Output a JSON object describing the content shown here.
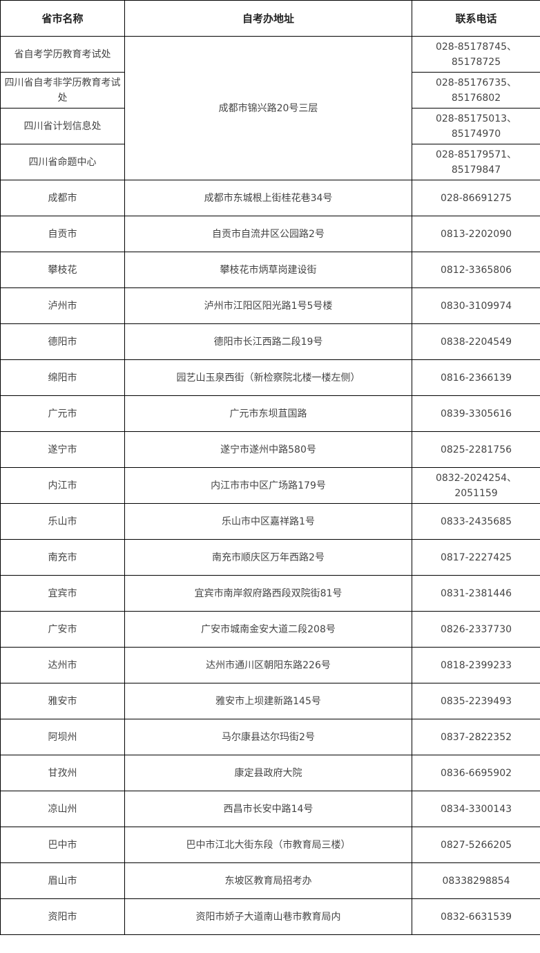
{
  "table": {
    "headers": [
      "省市名称",
      "自考办地址",
      "联系电话"
    ],
    "provincial": {
      "address": "成都市锦兴路20号三层",
      "rows": [
        {
          "name": "省自考学历教育考试处",
          "phone": "028-85178745、85178725"
        },
        {
          "name": "四川省自考非学历教育考试处",
          "phone": "028-85176735、85176802"
        },
        {
          "name": "四川省计划信息处",
          "phone": "028-85175013、85174970"
        },
        {
          "name": "四川省命题中心",
          "phone": "028-85179571、85179847"
        }
      ]
    },
    "rows": [
      {
        "name": "成都市",
        "address": "成都市东城根上街桂花巷34号",
        "phone": "028-86691275"
      },
      {
        "name": "自贡市",
        "address": "自贡市自流井区公园路2号",
        "phone": "0813-2202090"
      },
      {
        "name": "攀枝花",
        "address": "攀枝花市炳草岗建设街",
        "phone": "0812-3365806"
      },
      {
        "name": "泸州市",
        "address": "泸州市江阳区阳光路1号5号楼",
        "phone": "0830-3109974"
      },
      {
        "name": "德阳市",
        "address": "德阳市长江西路二段19号",
        "phone": "0838-2204549"
      },
      {
        "name": "绵阳市",
        "address": "园艺山玉泉西街（新检察院北楼一楼左侧）",
        "phone": "0816-2366139"
      },
      {
        "name": "广元市",
        "address": "广元市东坝苴国路",
        "phone": "0839-3305616"
      },
      {
        "name": "遂宁市",
        "address": "遂宁市遂州中路580号",
        "phone": "0825-2281756"
      },
      {
        "name": "内江市",
        "address": "内江市市中区广场路179号",
        "phone": "0832-2024254、2051159"
      },
      {
        "name": "乐山市",
        "address": "乐山市中区嘉祥路1号",
        "phone": "0833-2435685"
      },
      {
        "name": "南充市",
        "address": "南充市顺庆区万年西路2号",
        "phone": "0817-2227425"
      },
      {
        "name": "宜宾市",
        "address": "宜宾市南岸叙府路西段双院街81号",
        "phone": "0831-2381446"
      },
      {
        "name": "广安市",
        "address": "广安市城南金安大道二段208号",
        "phone": "0826-2337730"
      },
      {
        "name": "达州市",
        "address": "达州市通川区朝阳东路226号",
        "phone": "0818-2399233"
      },
      {
        "name": "雅安市",
        "address": "雅安市上坝建新路145号",
        "phone": "0835-2239493"
      },
      {
        "name": "阿坝州",
        "address": "马尔康县达尔玛街2号",
        "phone": "0837-2822352"
      },
      {
        "name": "甘孜州",
        "address": "康定县政府大院",
        "phone": "0836-6695902"
      },
      {
        "name": "凉山州",
        "address": "西昌市长安中路14号",
        "phone": "0834-3300143"
      },
      {
        "name": "巴中市",
        "address": "巴中市江北大街东段（市教育局三楼）",
        "phone": "0827-5266205"
      },
      {
        "name": "眉山市",
        "address": "东坡区教育局招考办",
        "phone": "08338298854"
      },
      {
        "name": "资阳市",
        "address": "资阳市娇子大道南山巷市教育局内",
        "phone": "0832-6631539"
      }
    ]
  }
}
